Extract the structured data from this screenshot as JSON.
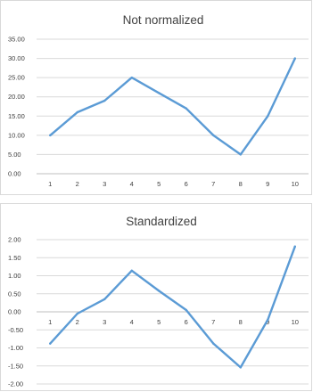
{
  "chart_data": [
    {
      "type": "line",
      "title": "Not normalized",
      "categories": [
        "1",
        "2",
        "3",
        "4",
        "5",
        "6",
        "7",
        "8",
        "9",
        "10"
      ],
      "series": [
        {
          "values": [
            10,
            16,
            19,
            25,
            21,
            17,
            10,
            5,
            15,
            30
          ]
        }
      ],
      "ylim": [
        0,
        35
      ],
      "yticks": [
        "0.00",
        "5.00",
        "10.00",
        "15.00",
        "20.00",
        "25.00",
        "30.00",
        "35.00"
      ],
      "grid": true,
      "legend": "none",
      "xlabel": "",
      "ylabel": ""
    },
    {
      "type": "line",
      "title": "Standardized",
      "categories": [
        "1",
        "2",
        "3",
        "4",
        "5",
        "6",
        "7",
        "8",
        "9",
        "10"
      ],
      "series": [
        {
          "values": [
            -0.88,
            -0.05,
            0.35,
            1.14,
            0.58,
            0.05,
            -0.88,
            -1.54,
            -0.22,
            1.81
          ]
        }
      ],
      "ylim": [
        -2,
        2
      ],
      "yticks": [
        "-2.00",
        "-1.50",
        "-1.00",
        "-0.50",
        "0.00",
        "0.50",
        "1.00",
        "1.50",
        "2.00"
      ],
      "grid": true,
      "legend": "none",
      "xlabel": "",
      "ylabel": ""
    }
  ],
  "colors": {
    "series": "#5b9bd5",
    "grid": "#d9d9d9",
    "axis": "#bfbfbf",
    "text": "#404040"
  }
}
